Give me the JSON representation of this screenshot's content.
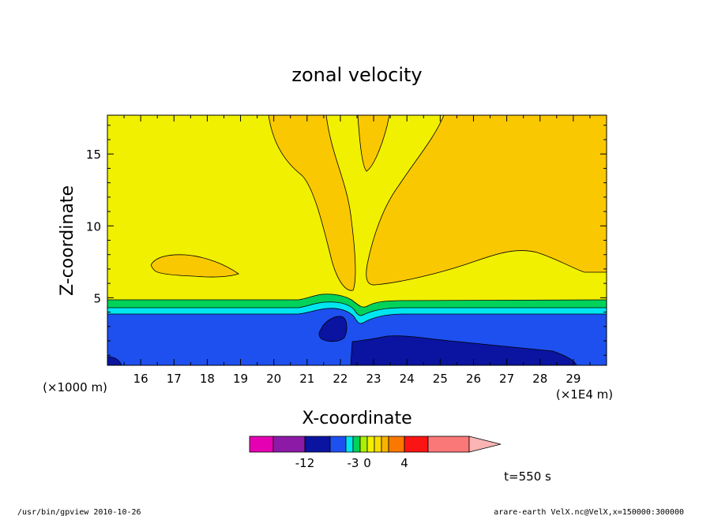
{
  "chart_data": {
    "type": "contour",
    "title": "zonal velocity",
    "xlabel": "X-coordinate",
    "ylabel": "Z-coordinate",
    "y_units": "(×1000 m)",
    "x_units": "(×1E4 m)",
    "xlim": [
      15,
      30
    ],
    "ylim": [
      0.3,
      17.7
    ],
    "x_ticks": [
      "16",
      "17",
      "18",
      "19",
      "20",
      "21",
      "22",
      "23",
      "24",
      "25",
      "26",
      "27",
      "28",
      "29"
    ],
    "y_ticks": [
      "5",
      "10",
      "15"
    ],
    "time_label": "t=550 s",
    "colorbar": {
      "tick_labels": [
        "-12",
        "-3",
        "0",
        "4"
      ],
      "colors": [
        "#e600b4",
        "#8c1aa6",
        "#0a14a0",
        "#1e50f0",
        "#00e6f0",
        "#00d25a",
        "#aaf000",
        "#f0f000",
        "#fadc00",
        "#fab400",
        "#fa7800",
        "#fa1414",
        "#fa7878",
        "#fab4b4"
      ]
    },
    "fill_colors": {
      "deep_blue": "#0a14a0",
      "blue": "#1e50f0",
      "cyan": "#00e6f0",
      "green": "#00d25a",
      "yellow": "#f0f000",
      "orange": "#fac800"
    }
  },
  "footer": {
    "left": "/usr/bin/gpview   2010-10-26",
    "right": "arare-earth_VelX.nc@VelX,x=150000:300000"
  }
}
